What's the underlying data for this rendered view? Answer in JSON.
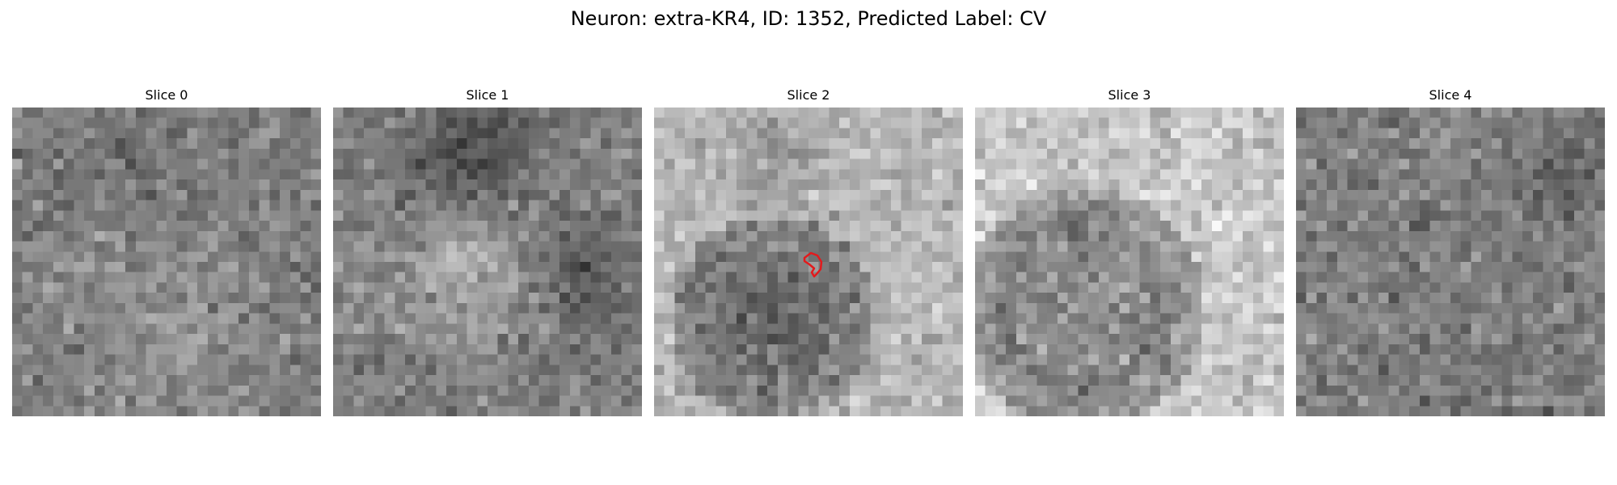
{
  "figure": {
    "title": "Neuron: extra-KR4, ID: 1352, Predicted Label: CV"
  },
  "panels": [
    {
      "title": "Slice 0"
    },
    {
      "title": "Slice 1"
    },
    {
      "title": "Slice 2"
    },
    {
      "title": "Slice 3"
    },
    {
      "title": "Slice 4"
    }
  ],
  "colors": {
    "contour": "#e31a1c",
    "colormap": "gray"
  }
}
